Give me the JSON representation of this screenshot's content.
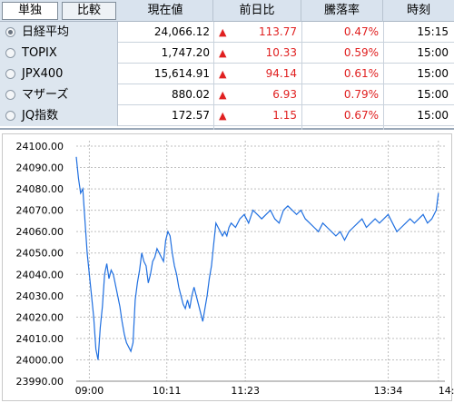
{
  "header": {
    "toggle_single": "単独",
    "toggle_compare": "比較",
    "col_price": "現在値",
    "col_change": "前日比",
    "col_pct": "騰落率",
    "col_time": "時刻"
  },
  "rows": [
    {
      "name": "日経平均",
      "price": "24,066.12",
      "arrow": "▲",
      "change": "113.77",
      "pct": "0.47%",
      "time": "15:15",
      "selected": true
    },
    {
      "name": "TOPIX",
      "price": "1,747.20",
      "arrow": "▲",
      "change": "10.33",
      "pct": "0.59%",
      "time": "15:00",
      "selected": false
    },
    {
      "name": "JPX400",
      "price": "15,614.91",
      "arrow": "▲",
      "change": "94.14",
      "pct": "0.61%",
      "time": "15:00",
      "selected": false
    },
    {
      "name": "マザーズ",
      "price": "880.02",
      "arrow": "▲",
      "change": "6.93",
      "pct": "0.79%",
      "time": "15:00",
      "selected": false
    },
    {
      "name": "JQ指数",
      "price": "172.57",
      "arrow": "▲",
      "change": "1.15",
      "pct": "0.67%",
      "time": "15:00",
      "selected": false
    }
  ],
  "colors": {
    "up": "#e02020",
    "line": "#1f6fe0",
    "grid": "#bfbfbf"
  },
  "chart_data": {
    "type": "line",
    "ylim": [
      23990,
      24100
    ],
    "yticks": [
      "24100.00",
      "24090.00",
      "24080.00",
      "24070.00",
      "24060.00",
      "24050.00",
      "24040.00",
      "24030.00",
      "24020.00",
      "24010.00",
      "24000.00",
      "23990.00"
    ],
    "xticks": [
      "09:00",
      "10:11",
      "11:23",
      "13:34",
      "14:"
    ],
    "xtick_minutes": [
      540,
      611,
      683,
      814,
      860
    ],
    "x_range_minutes": [
      528,
      866
    ],
    "points": [
      [
        528,
        24095
      ],
      [
        530,
        24085
      ],
      [
        532,
        24078
      ],
      [
        534,
        24080
      ],
      [
        536,
        24065
      ],
      [
        538,
        24050
      ],
      [
        540,
        24040
      ],
      [
        542,
        24030
      ],
      [
        544,
        24020
      ],
      [
        546,
        24005
      ],
      [
        548,
        24000
      ],
      [
        550,
        24015
      ],
      [
        552,
        24025
      ],
      [
        554,
        24040
      ],
      [
        556,
        24045
      ],
      [
        558,
        24038
      ],
      [
        560,
        24042
      ],
      [
        562,
        24040
      ],
      [
        564,
        24035
      ],
      [
        566,
        24030
      ],
      [
        568,
        24025
      ],
      [
        570,
        24018
      ],
      [
        572,
        24012
      ],
      [
        574,
        24008
      ],
      [
        576,
        24006
      ],
      [
        578,
        24004
      ],
      [
        580,
        24008
      ],
      [
        582,
        24028
      ],
      [
        584,
        24036
      ],
      [
        586,
        24042
      ],
      [
        588,
        24050
      ],
      [
        590,
        24046
      ],
      [
        592,
        24044
      ],
      [
        594,
        24036
      ],
      [
        596,
        24040
      ],
      [
        598,
        24046
      ],
      [
        600,
        24048
      ],
      [
        602,
        24052
      ],
      [
        604,
        24050
      ],
      [
        606,
        24048
      ],
      [
        608,
        24046
      ],
      [
        610,
        24056
      ],
      [
        612,
        24060
      ],
      [
        614,
        24058
      ],
      [
        616,
        24050
      ],
      [
        618,
        24044
      ],
      [
        620,
        24040
      ],
      [
        622,
        24034
      ],
      [
        624,
        24030
      ],
      [
        626,
        24026
      ],
      [
        628,
        24024
      ],
      [
        630,
        24028
      ],
      [
        632,
        24024
      ],
      [
        634,
        24030
      ],
      [
        636,
        24034
      ],
      [
        638,
        24030
      ],
      [
        640,
        24026
      ],
      [
        642,
        24022
      ],
      [
        644,
        24018
      ],
      [
        646,
        24024
      ],
      [
        648,
        24030
      ],
      [
        650,
        24038
      ],
      [
        652,
        24044
      ],
      [
        654,
        24054
      ],
      [
        656,
        24064
      ],
      [
        658,
        24062
      ],
      [
        660,
        24060
      ],
      [
        662,
        24058
      ],
      [
        664,
        24060
      ],
      [
        666,
        24058
      ],
      [
        668,
        24062
      ],
      [
        670,
        24064
      ],
      [
        674,
        24062
      ],
      [
        678,
        24066
      ],
      [
        682,
        24068
      ],
      [
        686,
        24064
      ],
      [
        690,
        24070
      ],
      [
        694,
        24068
      ],
      [
        698,
        24066
      ],
      [
        702,
        24068
      ],
      [
        706,
        24070
      ],
      [
        710,
        24066
      ],
      [
        714,
        24064
      ],
      [
        718,
        24070
      ],
      [
        722,
        24072
      ],
      [
        726,
        24070
      ],
      [
        730,
        24068
      ],
      [
        734,
        24070
      ],
      [
        738,
        24066
      ],
      [
        742,
        24064
      ],
      [
        746,
        24062
      ],
      [
        750,
        24060
      ],
      [
        754,
        24064
      ],
      [
        758,
        24062
      ],
      [
        762,
        24060
      ],
      [
        766,
        24058
      ],
      [
        770,
        24060
      ],
      [
        774,
        24056
      ],
      [
        778,
        24060
      ],
      [
        782,
        24062
      ],
      [
        786,
        24064
      ],
      [
        790,
        24066
      ],
      [
        794,
        24062
      ],
      [
        798,
        24064
      ],
      [
        802,
        24066
      ],
      [
        806,
        24064
      ],
      [
        810,
        24066
      ],
      [
        814,
        24068
      ],
      [
        818,
        24064
      ],
      [
        822,
        24060
      ],
      [
        826,
        24062
      ],
      [
        830,
        24064
      ],
      [
        834,
        24066
      ],
      [
        838,
        24064
      ],
      [
        842,
        24066
      ],
      [
        846,
        24068
      ],
      [
        850,
        24064
      ],
      [
        854,
        24066
      ],
      [
        858,
        24070
      ],
      [
        860,
        24078
      ]
    ]
  }
}
